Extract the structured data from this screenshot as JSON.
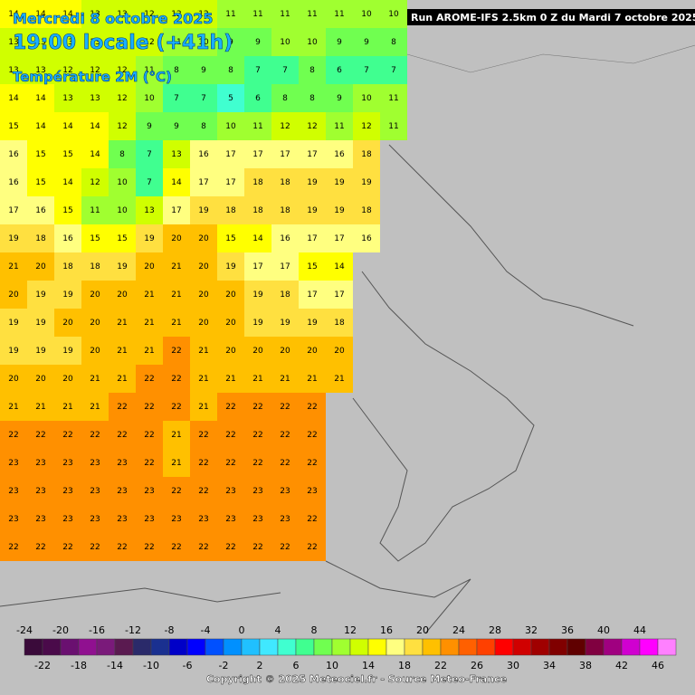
{
  "header": {
    "date": "Mercredi 8 octobre 2025",
    "time": "19:00 locale (+41h)",
    "parameter": "Température 2M (°C)",
    "run": "Run AROME-IFS 2.5km 0 Z du Mardi 7 octobre 2025"
  },
  "footer": "Copyright © 2025 Meteociel.fr - Source Meteo-France",
  "grid": {
    "rows": [
      [
        14,
        14,
        14,
        13,
        13,
        12,
        12,
        12,
        11,
        11,
        11,
        11,
        11,
        10,
        10
      ],
      [
        13,
        13,
        13,
        13,
        12,
        12,
        11,
        10,
        9,
        9,
        10,
        10,
        9,
        9,
        8
      ],
      [
        13,
        13,
        12,
        12,
        12,
        11,
        8,
        9,
        8,
        7,
        7,
        8,
        6,
        7,
        7
      ],
      [
        14,
        14,
        13,
        13,
        12,
        10,
        7,
        7,
        5,
        6,
        8,
        8,
        9,
        10,
        11
      ],
      [
        15,
        14,
        14,
        14,
        12,
        9,
        9,
        8,
        10,
        11,
        12,
        12,
        11,
        12,
        11
      ],
      [
        16,
        15,
        15,
        14,
        8,
        7,
        13,
        16,
        17,
        17,
        17,
        17,
        16,
        18
      ],
      [
        16,
        15,
        14,
        12,
        10,
        7,
        14,
        17,
        17,
        18,
        18,
        19,
        19,
        19
      ],
      [
        17,
        16,
        15,
        11,
        10,
        13,
        17,
        19,
        18,
        18,
        18,
        19,
        19,
        18
      ],
      [
        19,
        18,
        16,
        15,
        15,
        19,
        20,
        20,
        15,
        14,
        16,
        17,
        17,
        16
      ],
      [
        21,
        20,
        18,
        18,
        19,
        20,
        21,
        20,
        19,
        17,
        17,
        15,
        14
      ],
      [
        20,
        19,
        19,
        20,
        20,
        21,
        21,
        20,
        20,
        19,
        18,
        17,
        17
      ],
      [
        19,
        19,
        20,
        20,
        21,
        21,
        21,
        20,
        20,
        19,
        19,
        19,
        18
      ],
      [
        19,
        19,
        19,
        20,
        21,
        21,
        22,
        21,
        20,
        20,
        20,
        20,
        20
      ],
      [
        20,
        20,
        20,
        21,
        21,
        22,
        22,
        21,
        21,
        21,
        21,
        21,
        21
      ],
      [
        21,
        21,
        21,
        21,
        22,
        22,
        22,
        21,
        22,
        22,
        22,
        22
      ],
      [
        22,
        22,
        22,
        22,
        22,
        22,
        21,
        22,
        22,
        22,
        22,
        22
      ],
      [
        23,
        23,
        23,
        23,
        23,
        22,
        21,
        22,
        22,
        22,
        22,
        22
      ],
      [
        23,
        23,
        23,
        23,
        23,
        23,
        22,
        22,
        23,
        23,
        23,
        23
      ],
      [
        23,
        23,
        23,
        23,
        23,
        23,
        23,
        23,
        23,
        23,
        23,
        22
      ],
      [
        22,
        22,
        22,
        22,
        22,
        22,
        22,
        22,
        22,
        22,
        22,
        22
      ]
    ]
  },
  "colorbar": {
    "ticks": [
      -24,
      -22,
      -20,
      -18,
      -16,
      -14,
      -12,
      -10,
      -8,
      -6,
      -4,
      -2,
      0,
      2,
      4,
      6,
      8,
      10,
      12,
      14,
      16,
      18,
      20,
      22,
      24,
      26,
      28,
      30,
      32,
      34,
      36,
      38,
      40,
      42,
      44,
      46
    ],
    "colors": [
      "#3a0a3a",
      "#4a0a4a",
      "#6a1070",
      "#901090",
      "#7a1a7a",
      "#5a1a50",
      "#2a2a6a",
      "#1a3090",
      "#0000c8",
      "#0000ff",
      "#0050ff",
      "#0090ff",
      "#20c0ff",
      "#40e8ff",
      "#40ffd0",
      "#40ff90",
      "#70ff50",
      "#a0ff30",
      "#d0ff00",
      "#ffff00",
      "#ffff80",
      "#ffe040",
      "#ffc000",
      "#ff9000",
      "#ff6000",
      "#ff4000",
      "#ff0000",
      "#d00000",
      "#a00000",
      "#800000",
      "#600000",
      "#800040",
      "#a00080",
      "#d000d0",
      "#ff00ff",
      "#ff80ff"
    ]
  }
}
